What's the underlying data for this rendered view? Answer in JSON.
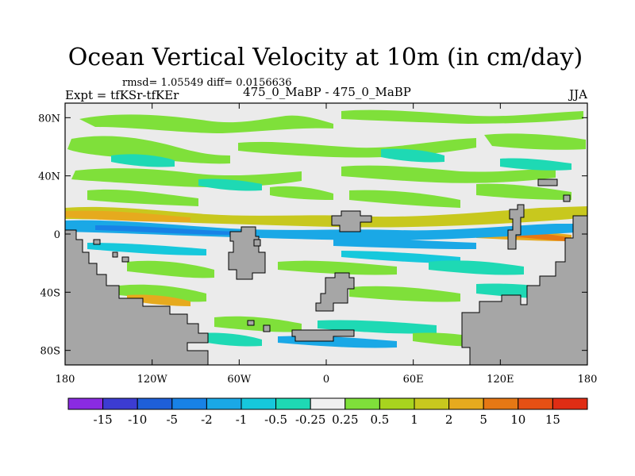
{
  "chart_data": {
    "type": "heatmap",
    "title": "Ocean Vertical Velocity at 10m (in cm/day)",
    "stats": "rmsd= 1.05549 diff= 0.0156636",
    "left_label": "Expt = tfKSr-tfKEr",
    "center_label": "475_0_MaBP - 475_0_MaBP",
    "right_label": "JJA",
    "xlim": [
      -180,
      180
    ],
    "ylim": [
      -90,
      90
    ],
    "x_ticks": [
      {
        "value": -180,
        "label": "180"
      },
      {
        "value": -120,
        "label": "120W"
      },
      {
        "value": -60,
        "label": "60W"
      },
      {
        "value": 0,
        "label": "0"
      },
      {
        "value": 60,
        "label": "60E"
      },
      {
        "value": 120,
        "label": "120E"
      },
      {
        "value": 180,
        "label": "180"
      }
    ],
    "y_ticks": [
      {
        "value": 80,
        "label": "80N"
      },
      {
        "value": 40,
        "label": "40N"
      },
      {
        "value": 0,
        "label": "0"
      },
      {
        "value": -40,
        "label": "40S"
      },
      {
        "value": -80,
        "label": "80S"
      }
    ],
    "colorbar": {
      "labels": [
        "-15",
        "-10",
        "-5",
        "-2",
        "-1",
        "-0.5",
        "-0.25",
        "0.25",
        "0.5",
        "1",
        "2",
        "5",
        "10",
        "15"
      ],
      "colors": [
        "#8a2be2",
        "#3c3cd2",
        "#1e5fd9",
        "#1882e6",
        "#1aa8e6",
        "#16c8dc",
        "#1ed9b4",
        "#f0f0f0",
        "#7fe03a",
        "#a8d41e",
        "#c8c81e",
        "#e6aa1e",
        "#e67814",
        "#e65014",
        "#e02d14"
      ]
    },
    "land_color": "#a6a6a6",
    "background_value_color": "#ebebeb"
  }
}
